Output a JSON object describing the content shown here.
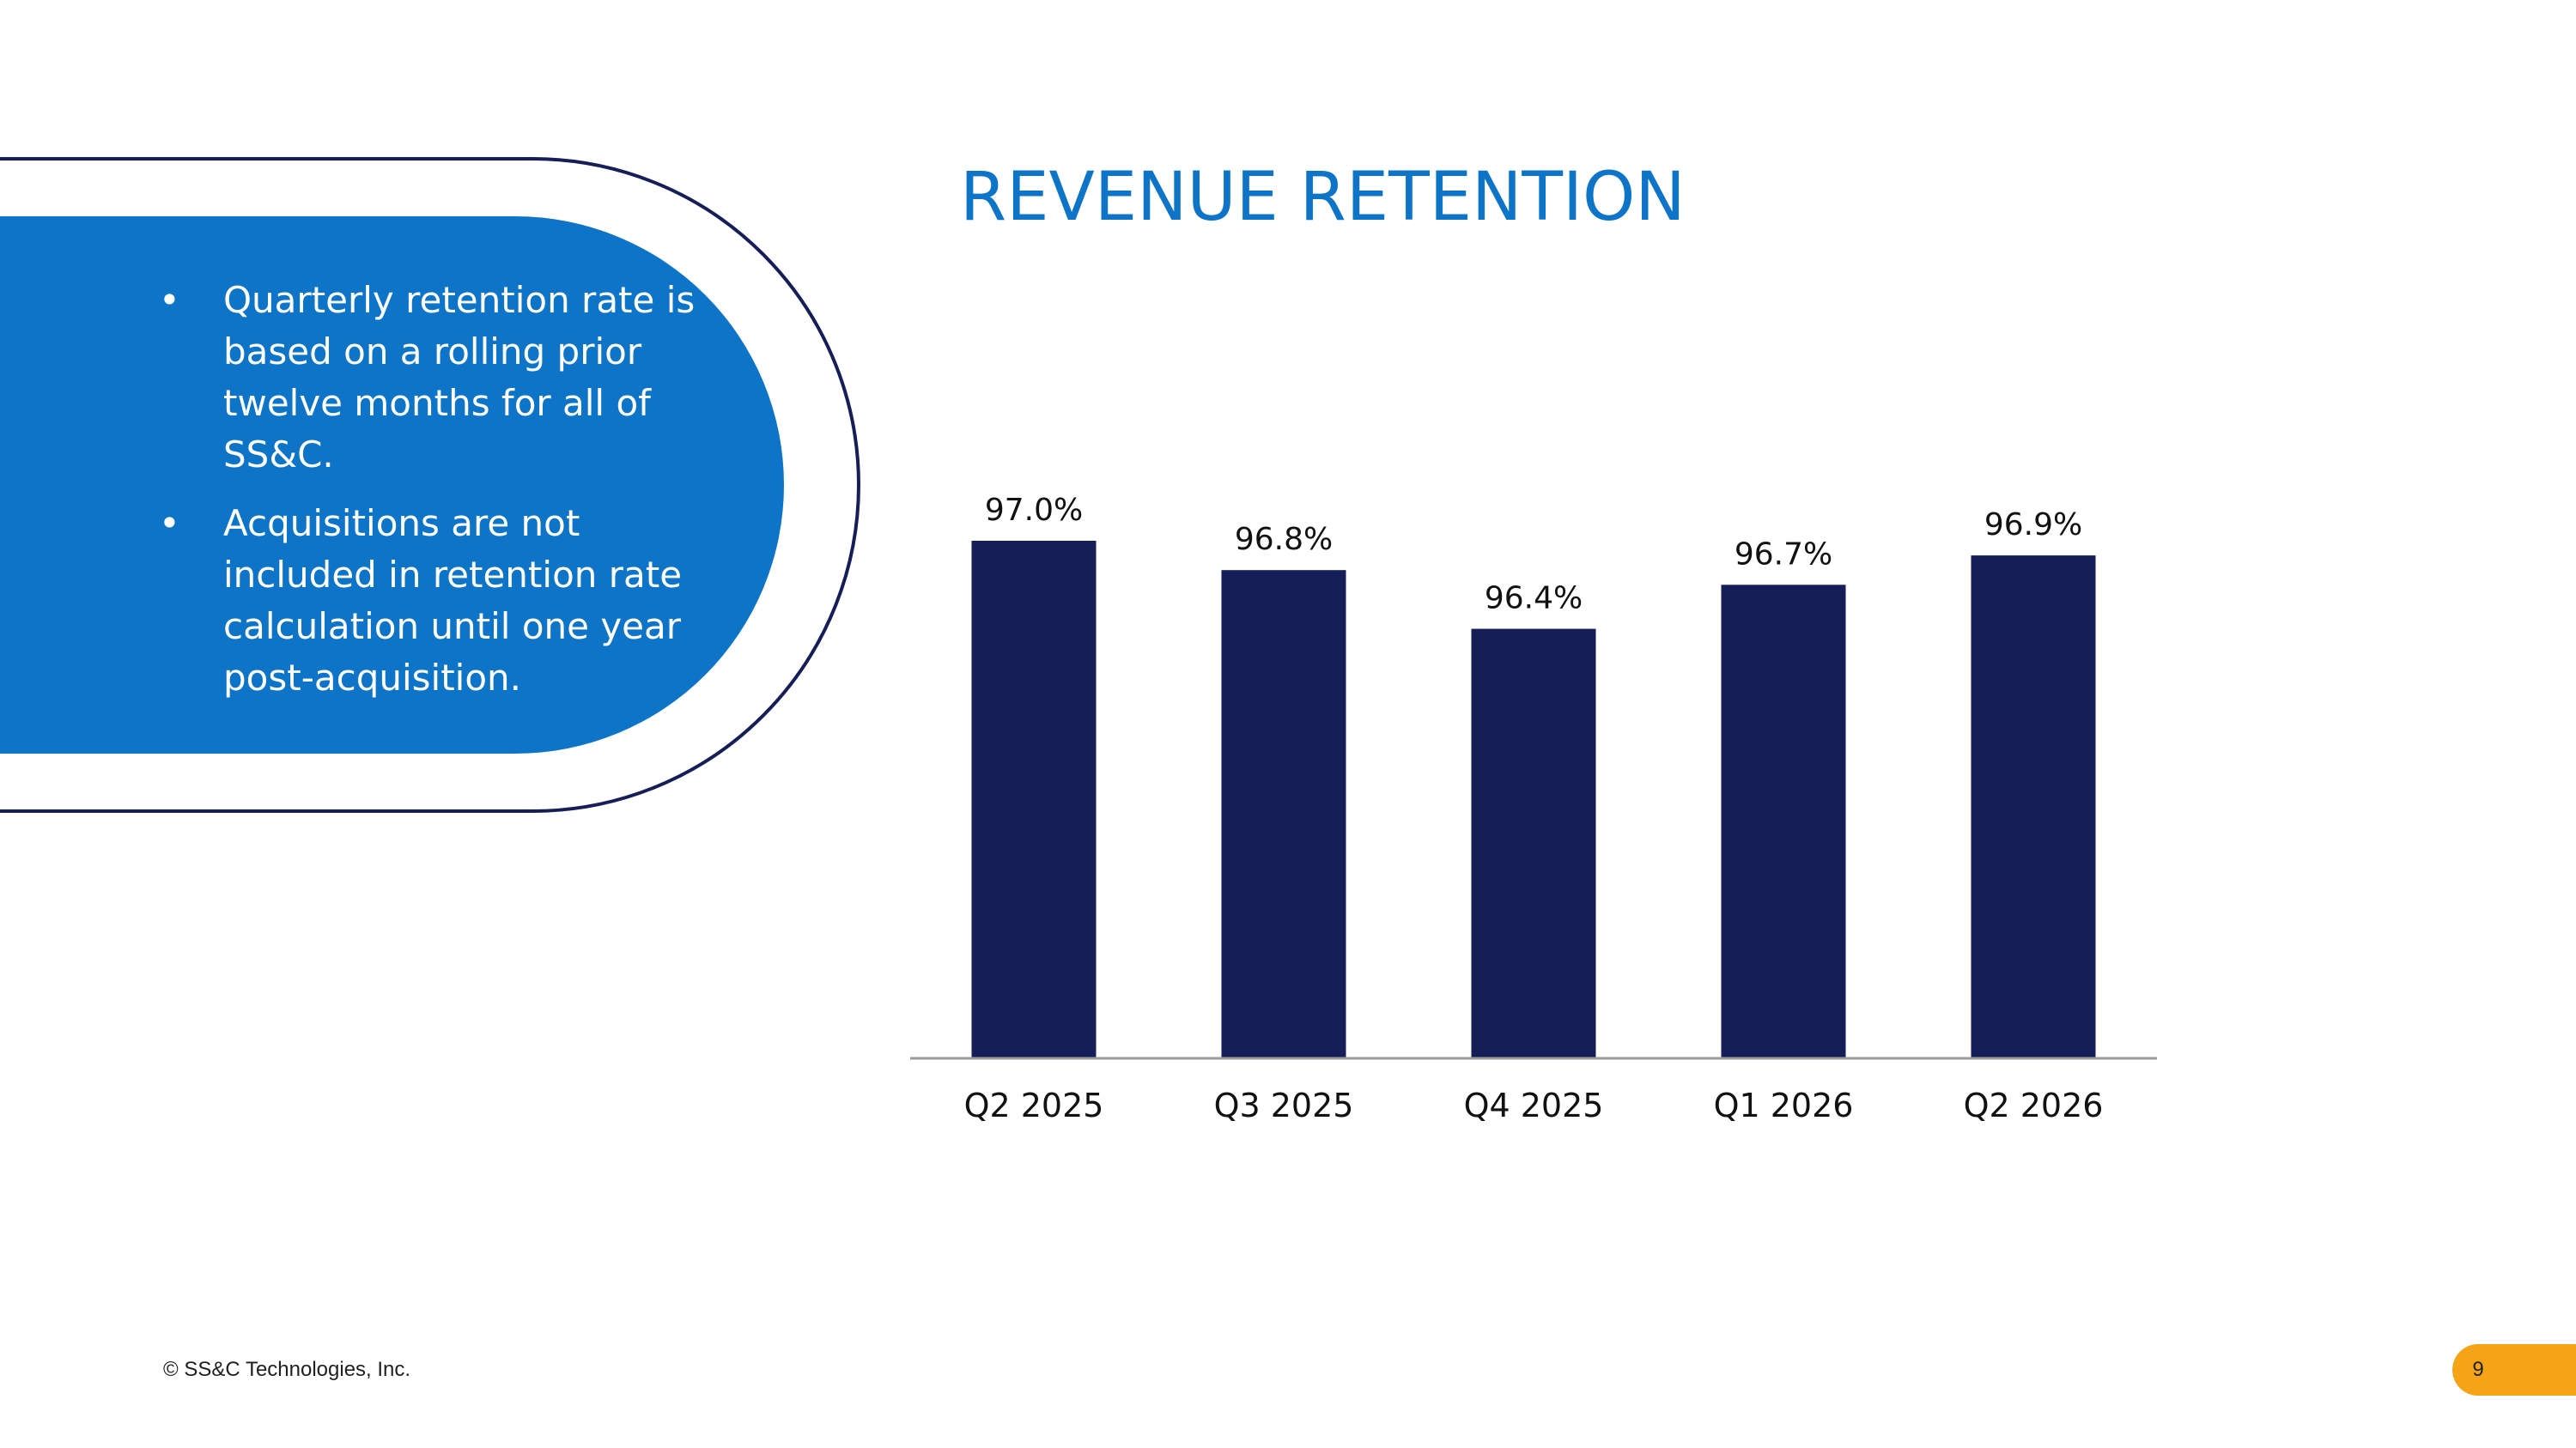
{
  "title": "REVENUE RETENTION",
  "bullets": [
    "Quarterly retention rate is based on a rolling prior twelve months for all of SS&C.",
    "Acquisitions are not included in retention rate calculation until one year post-acquisition."
  ],
  "footer": {
    "copyright": "© SS&C Technologies, Inc.",
    "page_number": "9"
  },
  "colors": {
    "bar": "#161e58",
    "title": "#0e74c7",
    "callout": "#0e74c7",
    "outline": "#161e58",
    "badge": "#f5a417"
  },
  "chart_data": {
    "type": "bar",
    "title": "",
    "xlabel": "",
    "ylabel": "",
    "categories": [
      "Q2 2025",
      "Q3 2025",
      "Q4 2025",
      "Q1 2026",
      "Q2 2026"
    ],
    "values": [
      97.0,
      96.8,
      96.4,
      96.7,
      96.9
    ],
    "labels": [
      "97.0%",
      "96.8%",
      "96.4%",
      "96.7%",
      "96.9%"
    ],
    "unit": "%",
    "grid": false,
    "legend": "none"
  }
}
